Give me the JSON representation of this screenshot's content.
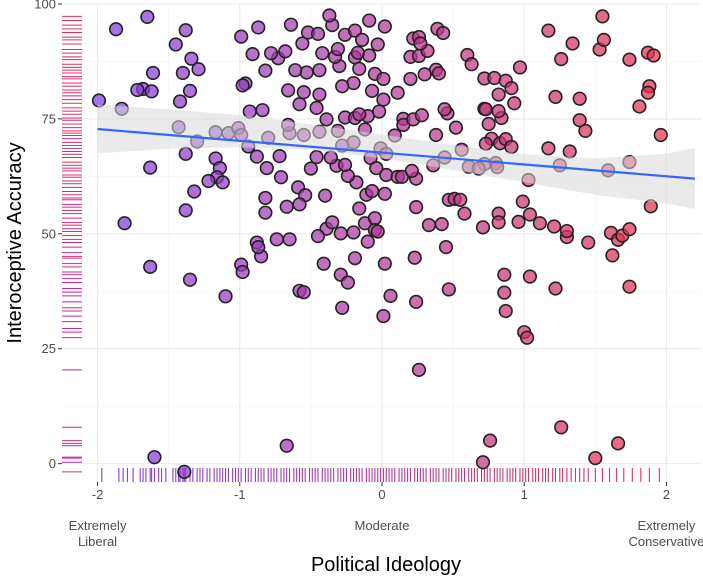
{
  "chart_data": {
    "type": "scatter",
    "xlabel": "Political Ideology",
    "ylabel": "Interoceptive Accuracy",
    "xlim": [
      -2.25,
      2.25
    ],
    "ylim": [
      -4,
      100
    ],
    "x_ticks": [
      {
        "value": -2,
        "label": "-2"
      },
      {
        "value": -1,
        "label": "-1"
      },
      {
        "value": 0,
        "label": "0"
      },
      {
        "value": 1,
        "label": "1"
      },
      {
        "value": 2,
        "label": "2"
      }
    ],
    "x_category_labels": [
      {
        "value": -2,
        "lines": [
          "Extremely",
          "Liberal"
        ]
      },
      {
        "value": 0,
        "lines": [
          "Moderate"
        ]
      },
      {
        "value": 2,
        "lines": [
          "Extremely",
          "Conservative"
        ]
      }
    ],
    "y_ticks": [
      {
        "value": 0,
        "label": "0"
      },
      {
        "value": 25,
        "label": "25"
      },
      {
        "value": 50,
        "label": "50"
      },
      {
        "value": 75,
        "label": "75"
      },
      {
        "value": 100,
        "label": "100"
      }
    ],
    "grid": true,
    "colors": {
      "liberal": "#7b3fe4",
      "conservative": "#e8304a",
      "trend": "#3366ff",
      "ribbon": "#d9d9d9",
      "point_stroke": "#222222",
      "panel_background": "#ffffff",
      "grid": "#ebebeb"
    },
    "trend_line": {
      "x": [
        -2,
        2.2
      ],
      "y": [
        72.8,
        62
      ]
    },
    "confidence_band": {
      "x": [
        -2,
        -1.5,
        -1,
        -0.5,
        0,
        0.5,
        1,
        1.5,
        2,
        2.2
      ],
      "lower": [
        67.5,
        68.5,
        68.8,
        68.3,
        66.4,
        63.9,
        61.2,
        58.5,
        56.6,
        55.4
      ],
      "upper": [
        78.1,
        77.1,
        75.8,
        73.8,
        71.6,
        69.3,
        67.3,
        66.4,
        67.4,
        68.6
      ]
    },
    "points": [
      {
        "x": -1.87,
        "y": 94.5
      },
      {
        "x": -1.65,
        "y": 97.2
      },
      {
        "x": -1.45,
        "y": 91.2
      },
      {
        "x": -1.38,
        "y": 94.3
      },
      {
        "x": -1.61,
        "y": 85
      },
      {
        "x": -1.68,
        "y": 81.5
      },
      {
        "x": -1.72,
        "y": 81.3
      },
      {
        "x": -1.62,
        "y": 81
      },
      {
        "x": -1.4,
        "y": 85
      },
      {
        "x": -1.34,
        "y": 88.1
      },
      {
        "x": -1.29,
        "y": 85.8
      },
      {
        "x": -1.42,
        "y": 78.8
      },
      {
        "x": -1.35,
        "y": 81.1
      },
      {
        "x": -1.99,
        "y": 79
      },
      {
        "x": -1.83,
        "y": 77.2
      },
      {
        "x": -1.43,
        "y": 73.2
      },
      {
        "x": -1.3,
        "y": 70.1
      },
      {
        "x": -1.17,
        "y": 72.1
      },
      {
        "x": -1.08,
        "y": 71.9
      },
      {
        "x": -1.01,
        "y": 73
      },
      {
        "x": -0.99,
        "y": 71.5
      },
      {
        "x": -1.38,
        "y": 67.4
      },
      {
        "x": -1.17,
        "y": 66.4
      },
      {
        "x": -1.14,
        "y": 64.3
      },
      {
        "x": -1.16,
        "y": 62.3
      },
      {
        "x": -1.12,
        "y": 61.2
      },
      {
        "x": -1.22,
        "y": 61.5
      },
      {
        "x": -1.63,
        "y": 64.4
      },
      {
        "x": -1.32,
        "y": 59.2
      },
      {
        "x": -1.38,
        "y": 55.1
      },
      {
        "x": -1.81,
        "y": 52.3
      },
      {
        "x": -1.63,
        "y": 42.8
      },
      {
        "x": -1.35,
        "y": 40
      },
      {
        "x": -1.1,
        "y": 36.4
      },
      {
        "x": -0.99,
        "y": 43.3
      },
      {
        "x": -0.98,
        "y": 41.7
      },
      {
        "x": -1.6,
        "y": 1.4
      },
      {
        "x": -1.39,
        "y": -1.8
      },
      {
        "x": -0.88,
        "y": 48.1
      },
      {
        "x": -0.85,
        "y": 45.1
      },
      {
        "x": -0.74,
        "y": 48.8
      },
      {
        "x": -0.87,
        "y": 47.1
      },
      {
        "x": -0.67,
        "y": 3.9
      },
      {
        "x": -0.65,
        "y": 48.8
      },
      {
        "x": -0.58,
        "y": 37.6
      },
      {
        "x": -0.55,
        "y": 37.3
      },
      {
        "x": -0.41,
        "y": 43.5
      },
      {
        "x": -0.39,
        "y": 51.1
      },
      {
        "x": -0.45,
        "y": 49.5
      },
      {
        "x": -0.35,
        "y": 52.5
      },
      {
        "x": -0.4,
        "y": 58.3
      },
      {
        "x": -0.29,
        "y": 50.1
      },
      {
        "x": -0.2,
        "y": 50.3
      },
      {
        "x": -0.29,
        "y": 41.1
      },
      {
        "x": -0.24,
        "y": 39.4
      },
      {
        "x": -0.28,
        "y": 33.9
      },
      {
        "x": -0.19,
        "y": 44.7
      },
      {
        "x": -0.12,
        "y": 52.3
      },
      {
        "x": -0.1,
        "y": 48.3
      },
      {
        "x": -0.05,
        "y": 53.4
      },
      {
        "x": -0.11,
        "y": 58.5
      },
      {
        "x": -0.16,
        "y": 55.5
      },
      {
        "x": -0.18,
        "y": 61.2
      },
      {
        "x": -0.24,
        "y": 62.6
      },
      {
        "x": -0.32,
        "y": 64.8
      },
      {
        "x": -0.36,
        "y": 66.6
      },
      {
        "x": -0.46,
        "y": 66.7
      },
      {
        "x": -0.5,
        "y": 64.2
      },
      {
        "x": -0.59,
        "y": 60.1
      },
      {
        "x": -0.54,
        "y": 58.4
      },
      {
        "x": -0.58,
        "y": 56.4
      },
      {
        "x": -0.67,
        "y": 55.9
      },
      {
        "x": -0.82,
        "y": 57.8
      },
      {
        "x": -0.82,
        "y": 54.6
      },
      {
        "x": -0.71,
        "y": 62.3
      },
      {
        "x": -0.81,
        "y": 64.3
      },
      {
        "x": -0.72,
        "y": 66.9
      },
      {
        "x": -0.88,
        "y": 66.8
      },
      {
        "x": -0.94,
        "y": 69
      },
      {
        "x": -0.8,
        "y": 70.9
      },
      {
        "x": -0.65,
        "y": 71.9
      },
      {
        "x": -0.66,
        "y": 73.7
      },
      {
        "x": -0.55,
        "y": 71.5
      },
      {
        "x": -0.44,
        "y": 72.2
      },
      {
        "x": -0.39,
        "y": 74.9
      },
      {
        "x": -0.46,
        "y": 77.4
      },
      {
        "x": -0.31,
        "y": 72.4
      },
      {
        "x": -0.26,
        "y": 75.3
      },
      {
        "x": -0.19,
        "y": 75.2
      },
      {
        "x": -0.12,
        "y": 72.7
      },
      {
        "x": -0.2,
        "y": 69.9
      },
      {
        "x": -0.28,
        "y": 69.2
      },
      {
        "x": -0.08,
        "y": 66.5
      },
      {
        "x": -0.01,
        "y": 68.6
      },
      {
        "x": 0.03,
        "y": 67.4
      },
      {
        "x": -0.04,
        "y": 64.3
      },
      {
        "x": -0.26,
        "y": 65
      },
      {
        "x": -0.1,
        "y": 75.6
      },
      {
        "x": -0.16,
        "y": 76
      },
      {
        "x": -0.07,
        "y": 81.1
      },
      {
        "x": -0.05,
        "y": 84.8
      },
      {
        "x": -0.2,
        "y": 82.8
      },
      {
        "x": -0.28,
        "y": 82.1
      },
      {
        "x": -0.3,
        "y": 86.5
      },
      {
        "x": -0.44,
        "y": 85.6
      },
      {
        "x": -0.53,
        "y": 85.1
      },
      {
        "x": -0.61,
        "y": 85.6
      },
      {
        "x": -0.66,
        "y": 81.2
      },
      {
        "x": -0.55,
        "y": 80.8
      },
      {
        "x": -0.44,
        "y": 80.3
      },
      {
        "x": -0.58,
        "y": 78.2
      },
      {
        "x": -0.84,
        "y": 76.9
      },
      {
        "x": -0.93,
        "y": 76.6
      },
      {
        "x": -0.96,
        "y": 82.7
      },
      {
        "x": -0.98,
        "y": 82.3
      },
      {
        "x": -0.82,
        "y": 85.5
      },
      {
        "x": -0.73,
        "y": 88.2
      },
      {
        "x": -0.68,
        "y": 89.7
      },
      {
        "x": -0.78,
        "y": 89.3
      },
      {
        "x": -0.91,
        "y": 89.1
      },
      {
        "x": -0.87,
        "y": 94.9
      },
      {
        "x": -0.99,
        "y": 92.9
      },
      {
        "x": -0.64,
        "y": 95.5
      },
      {
        "x": -0.56,
        "y": 91.4
      },
      {
        "x": -0.52,
        "y": 93.8
      },
      {
        "x": -0.45,
        "y": 93.5
      },
      {
        "x": -0.42,
        "y": 89.3
      },
      {
        "x": -0.33,
        "y": 88.5
      },
      {
        "x": -0.31,
        "y": 90.2
      },
      {
        "x": -0.35,
        "y": 95.4
      },
      {
        "x": -0.26,
        "y": 93.3
      },
      {
        "x": -0.19,
        "y": 94.2
      },
      {
        "x": -0.14,
        "y": 92.2
      },
      {
        "x": -0.19,
        "y": 88.4
      },
      {
        "x": -0.09,
        "y": 88.8
      },
      {
        "x": -0.03,
        "y": 91.2
      },
      {
        "x": -0.16,
        "y": 85.9
      },
      {
        "x": -0.37,
        "y": 97.5
      },
      {
        "x": -0.17,
        "y": 89.4
      },
      {
        "x": -0.09,
        "y": 96.4
      },
      {
        "x": 0.02,
        "y": 95.1
      },
      {
        "x": 0.01,
        "y": 83.7
      },
      {
        "x": 0.01,
        "y": 79.2
      },
      {
        "x": -0.02,
        "y": 76.6
      },
      {
        "x": 0.11,
        "y": 80.7
      },
      {
        "x": 0.15,
        "y": 75
      },
      {
        "x": 0.15,
        "y": 73.7
      },
      {
        "x": 0.09,
        "y": 71.4
      },
      {
        "x": 0.03,
        "y": 62.8
      },
      {
        "x": 0.11,
        "y": 62.4
      },
      {
        "x": 0.14,
        "y": 62.4
      },
      {
        "x": -0.07,
        "y": 59.3
      },
      {
        "x": 0.02,
        "y": 58.7
      },
      {
        "x": -0.05,
        "y": 50.8
      },
      {
        "x": -0.03,
        "y": 50.5
      },
      {
        "x": 0.02,
        "y": 43.5
      },
      {
        "x": 0.06,
        "y": 36.5
      },
      {
        "x": 0.01,
        "y": 32.1
      },
      {
        "x": 0.24,
        "y": 35.2
      },
      {
        "x": 0.26,
        "y": 20.4
      },
      {
        "x": 0.23,
        "y": 44.8
      },
      {
        "x": 0.24,
        "y": 55.8
      },
      {
        "x": 0.33,
        "y": 51.9
      },
      {
        "x": 0.42,
        "y": 52.1
      },
      {
        "x": 0.45,
        "y": 47.1
      },
      {
        "x": 0.47,
        "y": 37.9
      },
      {
        "x": 0.47,
        "y": 57.4
      },
      {
        "x": 0.51,
        "y": 57.6
      },
      {
        "x": 0.55,
        "y": 57.4
      },
      {
        "x": 0.58,
        "y": 54.4
      },
      {
        "x": 0.61,
        "y": 64.6
      },
      {
        "x": 0.44,
        "y": 66.6
      },
      {
        "x": 0.36,
        "y": 64.9
      },
      {
        "x": 0.24,
        "y": 62
      },
      {
        "x": 0.21,
        "y": 63.7
      },
      {
        "x": 0.22,
        "y": 74.9
      },
      {
        "x": 0.28,
        "y": 75.8
      },
      {
        "x": 0.38,
        "y": 71.5
      },
      {
        "x": 0.46,
        "y": 76.2
      },
      {
        "x": 0.44,
        "y": 77.1
      },
      {
        "x": 0.52,
        "y": 73.1
      },
      {
        "x": 0.56,
        "y": 68.3
      },
      {
        "x": 0.38,
        "y": 85.7
      },
      {
        "x": 0.4,
        "y": 84.9
      },
      {
        "x": 0.3,
        "y": 84.7
      },
      {
        "x": 0.2,
        "y": 83.7
      },
      {
        "x": 0.2,
        "y": 88.5
      },
      {
        "x": 0.26,
        "y": 88.7
      },
      {
        "x": 0.32,
        "y": 89.8
      },
      {
        "x": 0.22,
        "y": 92.5
      },
      {
        "x": 0.26,
        "y": 92.8
      },
      {
        "x": 0.27,
        "y": 91.4
      },
      {
        "x": 0.39,
        "y": 94.6
      },
      {
        "x": 0.43,
        "y": 93.7
      },
      {
        "x": 0.6,
        "y": 88.9
      },
      {
        "x": 0.63,
        "y": 86.9
      },
      {
        "x": 0.72,
        "y": 83.8
      },
      {
        "x": 0.72,
        "y": 77.2
      },
      {
        "x": 0.75,
        "y": 73.9
      },
      {
        "x": 0.77,
        "y": 70.7
      },
      {
        "x": 0.73,
        "y": 69.6
      },
      {
        "x": 0.72,
        "y": 65.2
      },
      {
        "x": 0.68,
        "y": 64.2
      },
      {
        "x": 0.8,
        "y": 65.4
      },
      {
        "x": 0.81,
        "y": 64.5
      },
      {
        "x": 0.83,
        "y": 69.7
      },
      {
        "x": 0.87,
        "y": 70.6
      },
      {
        "x": 0.91,
        "y": 68.9
      },
      {
        "x": 0.84,
        "y": 75.2
      },
      {
        "x": 0.82,
        "y": 76.7
      },
      {
        "x": 0.82,
        "y": 80.3
      },
      {
        "x": 0.79,
        "y": 83.9
      },
      {
        "x": 0.87,
        "y": 83.3
      },
      {
        "x": 0.91,
        "y": 81.7
      },
      {
        "x": 0.93,
        "y": 78.4
      },
      {
        "x": 0.97,
        "y": 86.2
      },
      {
        "x": 0.73,
        "y": 77.1
      },
      {
        "x": 0.71,
        "y": 51.4
      },
      {
        "x": 0.82,
        "y": 54.4
      },
      {
        "x": 0.82,
        "y": 52.5
      },
      {
        "x": 0.96,
        "y": 52.6
      },
      {
        "x": 0.99,
        "y": 57
      },
      {
        "x": 1.03,
        "y": 61.7
      },
      {
        "x": 1.04,
        "y": 54.2
      },
      {
        "x": 1.11,
        "y": 52.3
      },
      {
        "x": 1.21,
        "y": 51.6
      },
      {
        "x": 1.3,
        "y": 49.3
      },
      {
        "x": 1.3,
        "y": 50.6
      },
      {
        "x": 1.45,
        "y": 48.1
      },
      {
        "x": 1.61,
        "y": 50.2
      },
      {
        "x": 1.66,
        "y": 48.7
      },
      {
        "x": 1.69,
        "y": 49.6
      },
      {
        "x": 1.74,
        "y": 51
      },
      {
        "x": 1.62,
        "y": 45.3
      },
      {
        "x": 1.74,
        "y": 38.5
      },
      {
        "x": 1.89,
        "y": 56
      },
      {
        "x": 0.86,
        "y": 41.1
      },
      {
        "x": 0.86,
        "y": 37.2
      },
      {
        "x": 0.87,
        "y": 33.2
      },
      {
        "x": 1,
        "y": 28.6
      },
      {
        "x": 1.02,
        "y": 27.4
      },
      {
        "x": 1.04,
        "y": 40.7
      },
      {
        "x": 1.22,
        "y": 38.1
      },
      {
        "x": 0.76,
        "y": 5
      },
      {
        "x": 0.71,
        "y": 0.3
      },
      {
        "x": 1.26,
        "y": 7.9
      },
      {
        "x": 1.5,
        "y": 1.2
      },
      {
        "x": 1.66,
        "y": 4.4
      },
      {
        "x": 1.17,
        "y": 68.6
      },
      {
        "x": 1.25,
        "y": 64.9
      },
      {
        "x": 1.32,
        "y": 67.9
      },
      {
        "x": 1.43,
        "y": 72.4
      },
      {
        "x": 1.39,
        "y": 74.7
      },
      {
        "x": 1.39,
        "y": 79.4
      },
      {
        "x": 1.22,
        "y": 79.8
      },
      {
        "x": 1.26,
        "y": 88
      },
      {
        "x": 1.34,
        "y": 91.4
      },
      {
        "x": 1.17,
        "y": 94.2
      },
      {
        "x": 1.53,
        "y": 90.1
      },
      {
        "x": 1.56,
        "y": 92.2
      },
      {
        "x": 1.55,
        "y": 97.3
      },
      {
        "x": 1.74,
        "y": 87.9
      },
      {
        "x": 1.87,
        "y": 89.4
      },
      {
        "x": 1.91,
        "y": 88.8
      },
      {
        "x": 1.88,
        "y": 82.1
      },
      {
        "x": 1.87,
        "y": 80.7
      },
      {
        "x": 1.81,
        "y": 77.7
      },
      {
        "x": 1.96,
        "y": 71.5
      },
      {
        "x": 1.74,
        "y": 65.6
      },
      {
        "x": 1.59,
        "y": 63.8
      }
    ],
    "rug_x": [
      -1.97,
      -1.85,
      -1.82,
      -1.79,
      -1.75,
      -1.7,
      -1.68,
      -1.66,
      -1.63,
      -1.62,
      -1.6,
      -1.57,
      -1.55,
      -1.52,
      -1.47,
      -1.45,
      -1.43,
      -1.42,
      -1.4,
      -1.39,
      -1.38,
      -1.35,
      -1.33,
      -1.3,
      -1.28,
      -1.26,
      -1.23,
      -1.21,
      -1.18,
      -1.16,
      -1.14,
      -1.12,
      -1.1,
      -1.08,
      -1.05,
      -1.03,
      -1.01,
      -0.99,
      -0.96,
      -0.94,
      -0.92,
      -0.89,
      -0.87,
      -0.85,
      -0.83,
      -0.8,
      -0.78,
      -0.76,
      -0.74,
      -0.71,
      -0.69,
      -0.67,
      -0.65,
      -0.62,
      -0.6,
      -0.58,
      -0.56,
      -0.54,
      -0.51,
      -0.49,
      -0.47,
      -0.45,
      -0.42,
      -0.4,
      -0.38,
      -0.36,
      -0.34,
      -0.31,
      -0.29,
      -0.27,
      -0.25,
      -0.22,
      -0.2,
      -0.18,
      -0.16,
      -0.14,
      -0.11,
      -0.09,
      -0.07,
      -0.05,
      -0.03,
      -0.01,
      0.01,
      0.03,
      0.05,
      0.07,
      0.09,
      0.12,
      0.14,
      0.16,
      0.18,
      0.2,
      0.23,
      0.25,
      0.27,
      0.29,
      0.31,
      0.34,
      0.36,
      0.38,
      0.4,
      0.43,
      0.45,
      0.47,
      0.49,
      0.52,
      0.54,
      0.56,
      0.58,
      0.61,
      0.63,
      0.65,
      0.67,
      0.7,
      0.72,
      0.74,
      0.76,
      0.79,
      0.81,
      0.83,
      0.85,
      0.88,
      0.9,
      0.92,
      0.94,
      0.97,
      0.99,
      1.01,
      1.03,
      1.06,
      1.08,
      1.1,
      1.13,
      1.15,
      1.17,
      1.2,
      1.22,
      1.25,
      1.27,
      1.3,
      1.33,
      1.36,
      1.39,
      1.42,
      1.45,
      1.5,
      1.55,
      1.6,
      1.65,
      1.7,
      1.76,
      1.82,
      1.88,
      1.95
    ],
    "rug_y": [
      97.3,
      96.4,
      95.4,
      94.6,
      93.8,
      92.8,
      92.2,
      91.3,
      90.1,
      89.3,
      88.5,
      87.9,
      86.9,
      86.2,
      85.6,
      85,
      84.2,
      83.7,
      82.8,
      82.1,
      81.3,
      80.7,
      80,
      79.2,
      78.4,
      77.4,
      76.7,
      76,
      75.2,
      74.7,
      73.9,
      73.1,
      72.4,
      71.9,
      71.4,
      70.7,
      69.9,
      69.2,
      68.6,
      67.9,
      67.3,
      66.6,
      65.6,
      64.9,
      64.3,
      63.7,
      62.8,
      62.3,
      61.5,
      60.9,
      60.1,
      59.2,
      58.5,
      57.8,
      57.4,
      56.4,
      55.8,
      55.1,
      54.4,
      53.4,
      52.5,
      51.9,
      51.1,
      50.5,
      49.6,
      48.8,
      48.1,
      47.1,
      45.9,
      45.1,
      44.7,
      43.5,
      42.8,
      41.7,
      41.1,
      40.3,
      39.4,
      38.1,
      37.3,
      36.5,
      35.2,
      33.9,
      33.2,
      32.1,
      30.9,
      29.4,
      28.6,
      27.4,
      20.4,
      7.9,
      5,
      4.4,
      3.9,
      1.4,
      1.2,
      0.3,
      -1.8
    ]
  }
}
